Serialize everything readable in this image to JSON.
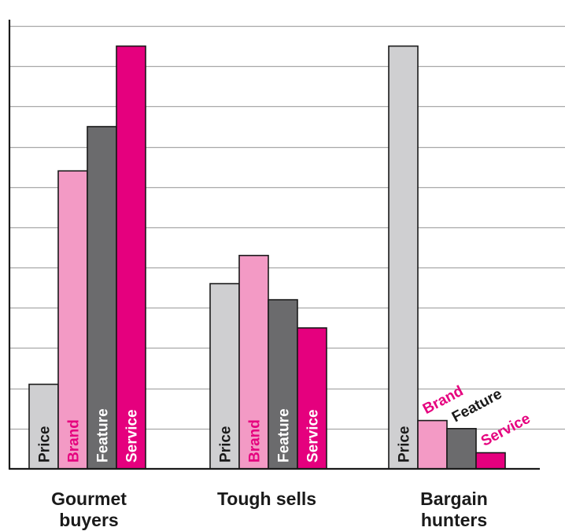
{
  "chart_data": {
    "type": "bar",
    "categories": [
      [
        "Gourmet",
        "buyers"
      ],
      [
        "Tough sells"
      ],
      [
        "Bargain",
        "hunters"
      ]
    ],
    "series": [
      {
        "name": "Price",
        "values": [
          2.1,
          4.6,
          10.5
        ]
      },
      {
        "name": "Brand",
        "values": [
          7.4,
          5.3,
          1.2
        ]
      },
      {
        "name": "Feature",
        "values": [
          8.5,
          4.2,
          1.0
        ]
      },
      {
        "name": "Service",
        "values": [
          10.5,
          3.5,
          0.4
        ]
      }
    ],
    "ylim": [
      0,
      11
    ],
    "grid": true,
    "title": "",
    "xlabel": "",
    "ylabel": ""
  },
  "colors": {
    "Price": "#cfcfd1",
    "Brand": "#f39ac5",
    "Feature": "#6b6b6d",
    "Service": "#e5007e",
    "grid": "#a8a8a8",
    "axis": "#1a1a1a",
    "bar_stroke": "#1a1a1a"
  },
  "label_colors": {
    "inside": {
      "Price": "#1a1a1a",
      "Brand": "#e5007e",
      "Feature": "#ffffff",
      "Service": "#ffffff"
    },
    "outside": {
      "Price": "#1a1a1a",
      "Brand": "#e5007e",
      "Feature": "#1a1a1a",
      "Service": "#e5007e"
    }
  }
}
